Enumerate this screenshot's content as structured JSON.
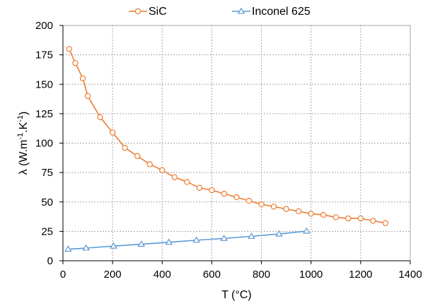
{
  "chart_data": {
    "type": "line",
    "xlabel": "T (°C)",
    "ylabel_parts": [
      "λ (W.m",
      "-1",
      ".K",
      "-1",
      ")"
    ],
    "xlim": [
      0,
      1400
    ],
    "ylim": [
      0,
      200
    ],
    "xticks": [
      0,
      200,
      400,
      600,
      800,
      1000,
      1200,
      1400
    ],
    "yticks": [
      0,
      25,
      50,
      75,
      100,
      125,
      150,
      175,
      200
    ],
    "grid": true,
    "legend_position": "top",
    "series": [
      {
        "name": "SiC",
        "color": "#ed7d31",
        "marker": "circle",
        "x": [
          25,
          50,
          80,
          100,
          150,
          200,
          250,
          300,
          350,
          400,
          450,
          500,
          550,
          600,
          650,
          700,
          750,
          800,
          850,
          900,
          950,
          1000,
          1050,
          1100,
          1150,
          1200,
          1250,
          1300
        ],
        "y": [
          180,
          168,
          155,
          140,
          122,
          109,
          96,
          89,
          82,
          77,
          71,
          67,
          62,
          60,
          57,
          54,
          51,
          48,
          46,
          44,
          42,
          40,
          39,
          37,
          36,
          36,
          34,
          32
        ]
      },
      {
        "name": "Inconel 625",
        "color": "#5b9bd5",
        "marker": "triangle",
        "x": [
          21,
          93,
          204,
          316,
          427,
          538,
          649,
          760,
          871,
          982
        ],
        "y": [
          9.8,
          10.8,
          12.5,
          14.1,
          15.7,
          17.5,
          19.0,
          20.8,
          22.8,
          25.2
        ]
      }
    ]
  }
}
